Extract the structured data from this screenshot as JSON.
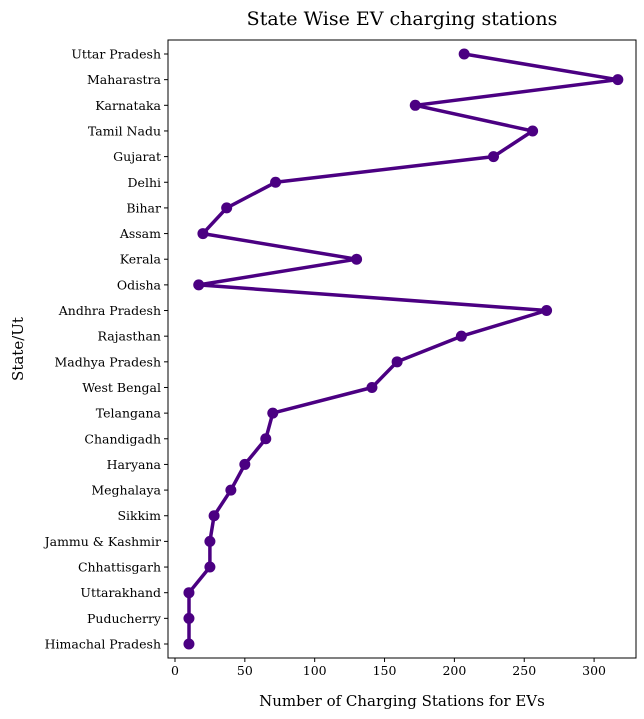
{
  "chart_data": {
    "type": "line",
    "orientation": "horizontal",
    "title": "State Wise EV charging stations",
    "xlabel": "Number of Charging Stations for EVs",
    "ylabel": "State/Ut",
    "xlim": [
      -5,
      330
    ],
    "xticks": [
      0,
      50,
      100,
      150,
      200,
      250,
      300
    ],
    "grid": false,
    "color": "#4b0082",
    "categories": [
      "Uttar Pradesh",
      "Maharastra",
      "Karnataka",
      "Tamil Nadu",
      "Gujarat",
      "Delhi",
      "Bihar",
      "Assam",
      "Kerala",
      "Odisha",
      "Andhra Pradesh",
      "Rajasthan",
      "Madhya Pradesh",
      "West Bengal",
      "Telangana",
      "Chandigadh",
      "Haryana",
      "Meghalaya",
      "Sikkim",
      "Jammu & Kashmir",
      "Chhattisgarh",
      "Uttarakhand",
      "Puducherry",
      "Himachal Pradesh"
    ],
    "values": [
      207,
      317,
      172,
      256,
      228,
      72,
      37,
      20,
      130,
      17,
      266,
      205,
      159,
      141,
      70,
      65,
      50,
      40,
      28,
      25,
      25,
      10,
      10,
      10
    ]
  }
}
